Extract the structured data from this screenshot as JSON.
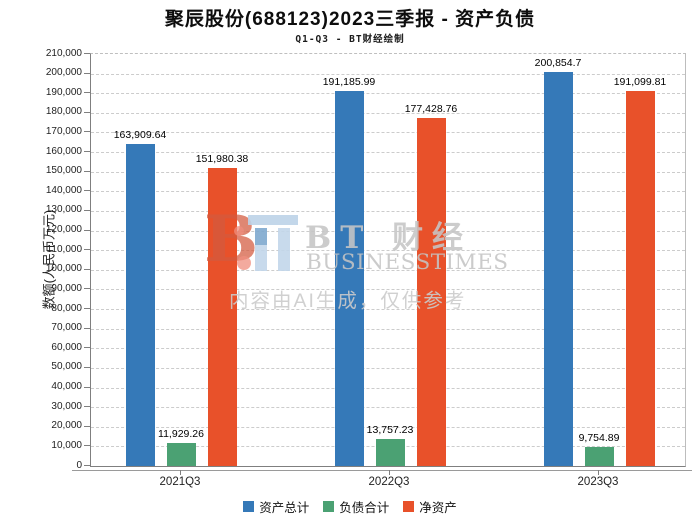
{
  "chart_data": {
    "type": "bar",
    "title": "聚辰股份(688123)2023三季报 - 资产负债",
    "subtitle": "Q1-Q3 - BT财经绘制",
    "ylabel": "数额(人民币万元)",
    "categories": [
      "2021Q3",
      "2022Q3",
      "2023Q3"
    ],
    "series": [
      {
        "name": "资产总计",
        "color": "#3579b8",
        "values": [
          163909.64,
          191185.99,
          200854.7
        ]
      },
      {
        "name": "负债合计",
        "color": "#4ba173",
        "values": [
          11929.26,
          13757.23,
          9754.89
        ]
      },
      {
        "name": "净资产",
        "color": "#e8512a",
        "values": [
          151980.38,
          177428.76,
          191099.81
        ]
      }
    ],
    "ylim": [
      0,
      210000
    ],
    "y_tick_step": 10000,
    "grid": true,
    "legend_position": "bottom"
  },
  "watermark": {
    "logo_letter": "B",
    "brand_cn": "BT 财经",
    "brand_en": "BUSINESSTIMES",
    "ai_note": "内容由AI生成，仅供参考"
  }
}
